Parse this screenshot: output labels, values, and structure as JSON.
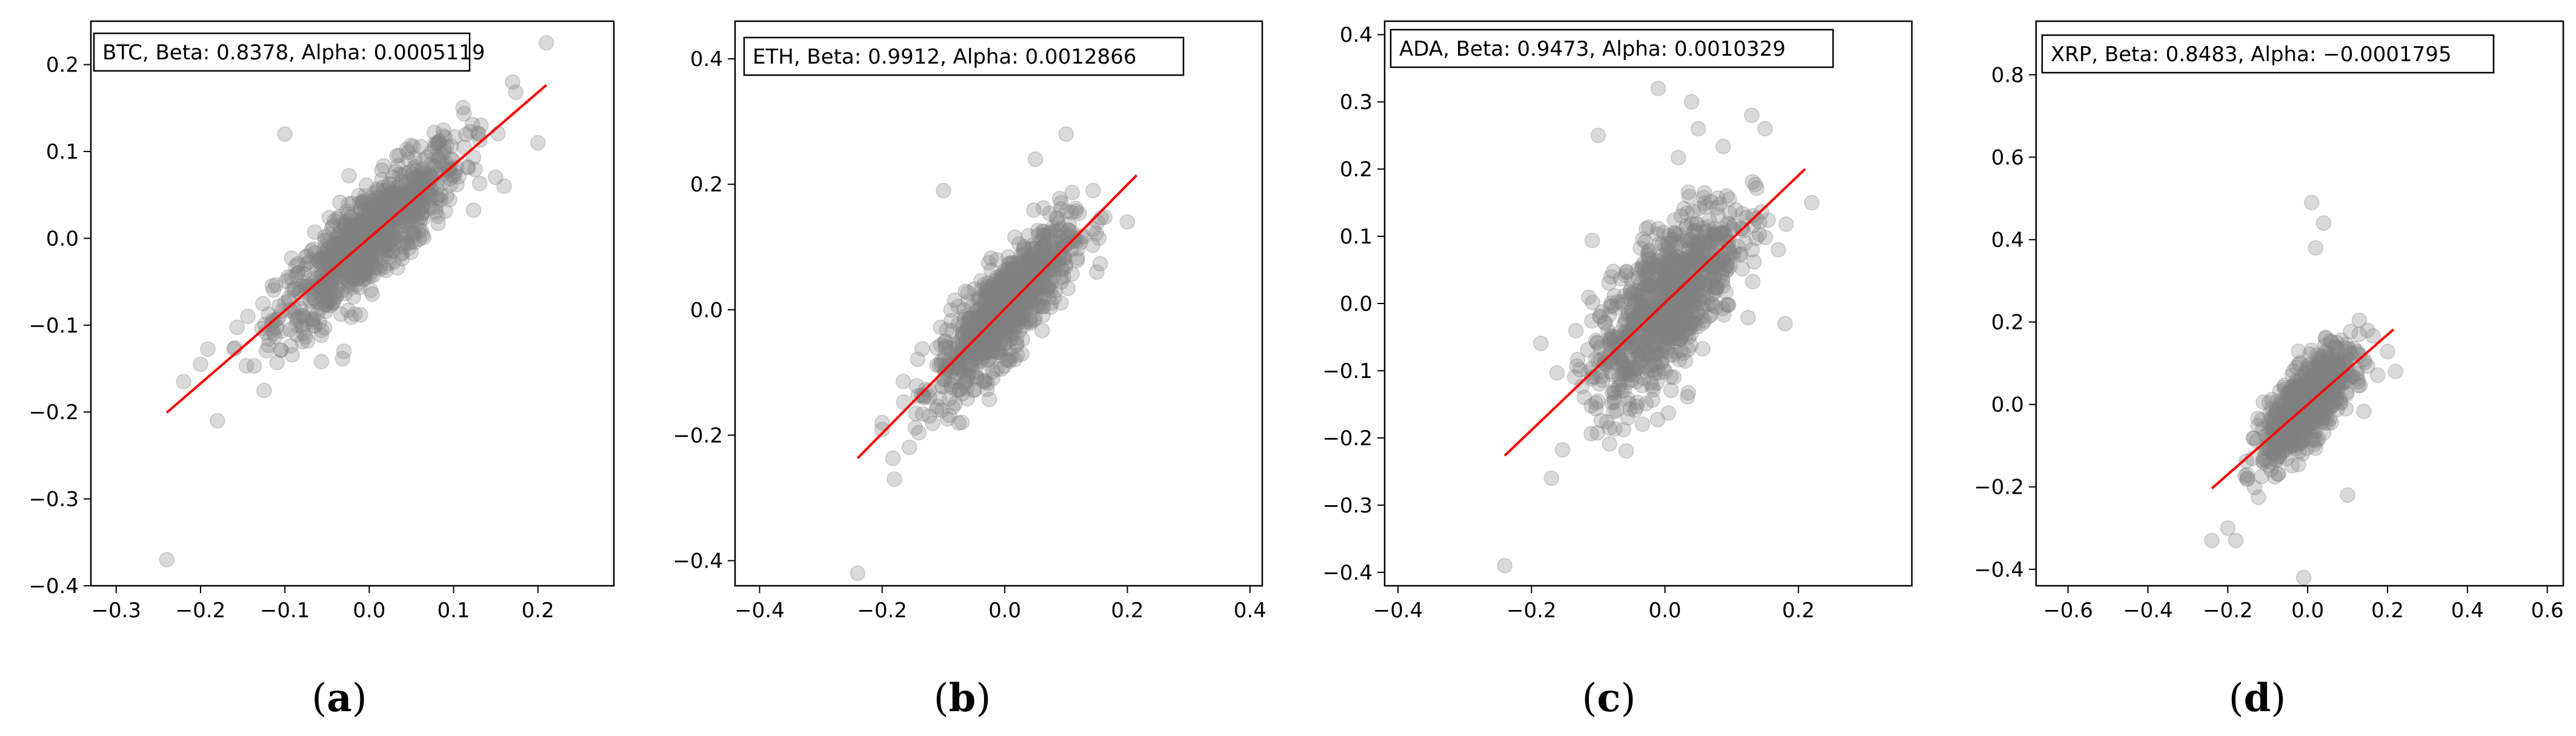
{
  "chart_data": [
    {
      "type": "scatter",
      "panel": "a",
      "asset": "BTC",
      "legend_text": "BTC, Beta: 0.8378, Alpha: 0.0005119",
      "beta": 0.8378,
      "alpha": 0.0005119,
      "xlim": [
        -0.33,
        0.29
      ],
      "ylim": [
        -0.4,
        0.25
      ],
      "xticks": [
        -0.3,
        -0.2,
        -0.1,
        0.0,
        0.1,
        0.2
      ],
      "xtick_labels": [
        "−0.3",
        "−0.2",
        "−0.1",
        "0.0",
        "0.1",
        "0.2"
      ],
      "yticks": [
        -0.4,
        -0.3,
        -0.2,
        -0.1,
        0.0,
        0.1,
        0.2
      ],
      "ytick_labels": [
        "−0.4",
        "−0.3",
        "−0.2",
        "−0.1",
        "0.0",
        "0.1",
        "0.2"
      ],
      "fit_line": {
        "x": [
          -0.24,
          0.21
        ],
        "y": [
          -0.2006,
          0.1765
        ],
        "color": "#ff0000"
      },
      "point_color": "#808080",
      "outliers": [
        [
          -0.24,
          -0.37
        ],
        [
          -0.18,
          -0.21
        ],
        [
          -0.1,
          0.12
        ],
        [
          0.21,
          0.225
        ],
        [
          0.17,
          0.18
        ],
        [
          0.2,
          0.11
        ],
        [
          -0.2,
          -0.145
        ],
        [
          -0.03,
          -0.13
        ],
        [
          0.16,
          0.06
        ],
        [
          -0.22,
          -0.165
        ]
      ]
    },
    {
      "type": "scatter",
      "panel": "b",
      "asset": "ETH",
      "legend_text": "ETH, Beta: 0.9912, Alpha: 0.0012866",
      "beta": 0.9912,
      "alpha": 0.0012866,
      "xlim": [
        -0.44,
        0.42
      ],
      "ylim": [
        -0.44,
        0.46
      ],
      "xticks": [
        -0.4,
        -0.2,
        0.0,
        0.2,
        0.4
      ],
      "xtick_labels": [
        "−0.4",
        "−0.2",
        "0.0",
        "0.2",
        "0.4"
      ],
      "yticks": [
        -0.4,
        -0.2,
        0.0,
        0.2,
        0.4
      ],
      "ytick_labels": [
        "−0.4",
        "−0.2",
        "0.0",
        "0.2",
        "0.4"
      ],
      "fit_line": {
        "x": [
          -0.24,
          0.215
        ],
        "y": [
          -0.2366,
          0.2144
        ],
        "color": "#ff0000"
      },
      "point_color": "#808080",
      "outliers": [
        [
          -0.24,
          -0.42
        ],
        [
          0.1,
          0.28
        ],
        [
          -0.1,
          0.19
        ],
        [
          0.05,
          0.24
        ],
        [
          -0.18,
          -0.27
        ],
        [
          0.2,
          0.14
        ],
        [
          -0.2,
          -0.18
        ],
        [
          0.15,
          0.06
        ]
      ]
    },
    {
      "type": "scatter",
      "panel": "c",
      "asset": "ADA",
      "legend_text": "ADA, Beta: 0.9473, Alpha: 0.0010329",
      "beta": 0.9473,
      "alpha": 0.0010329,
      "xlim": [
        -0.42,
        0.37
      ],
      "ylim": [
        -0.42,
        0.42
      ],
      "xticks": [
        -0.4,
        -0.2,
        0.0,
        0.2
      ],
      "xtick_labels": [
        "−0.4",
        "−0.2",
        "0.0",
        "0.2"
      ],
      "yticks": [
        -0.4,
        -0.3,
        -0.2,
        -0.1,
        0.0,
        0.1,
        0.2,
        0.3,
        0.4
      ],
      "ytick_labels": [
        "−0.4",
        "−0.3",
        "−0.2",
        "−0.1",
        "0.0",
        "0.1",
        "0.2",
        "0.3",
        "0.4"
      ],
      "fit_line": {
        "x": [
          -0.24,
          0.21
        ],
        "y": [
          -0.2263,
          0.2
        ],
        "color": "#ff0000"
      },
      "point_color": "#808080",
      "outliers": [
        [
          -0.24,
          -0.39
        ],
        [
          -0.01,
          0.32
        ],
        [
          0.04,
          0.3
        ],
        [
          0.05,
          0.26
        ],
        [
          0.13,
          0.28
        ],
        [
          0.15,
          0.26
        ],
        [
          -0.1,
          0.25
        ],
        [
          -0.17,
          -0.26
        ],
        [
          0.17,
          0.08
        ],
        [
          0.22,
          0.15
        ],
        [
          0.18,
          -0.03
        ]
      ]
    },
    {
      "type": "scatter",
      "panel": "d",
      "asset": "XRP",
      "legend_text": "XRP, Beta: 0.8483, Alpha: −0.0001795",
      "beta": 0.8483,
      "alpha": -0.0001795,
      "xlim": [
        -0.68,
        0.64
      ],
      "ylim": [
        -0.44,
        0.93
      ],
      "xticks": [
        -0.6,
        -0.4,
        -0.2,
        0.0,
        0.2,
        0.4,
        0.6
      ],
      "xtick_labels": [
        "−0.6",
        "−0.4",
        "−0.2",
        "0.0",
        "0.2",
        "0.4",
        "0.6"
      ],
      "yticks": [
        -0.4,
        -0.2,
        0.0,
        0.2,
        0.4,
        0.6,
        0.8
      ],
      "ytick_labels": [
        "−0.4",
        "−0.2",
        "0.0",
        "0.2",
        "0.4",
        "0.6",
        "0.8"
      ],
      "fit_line": {
        "x": [
          -0.24,
          0.215
        ],
        "y": [
          -0.2038,
          0.1822
        ],
        "color": "#ff0000"
      },
      "point_color": "#808080",
      "outliers": [
        [
          0.01,
          0.49
        ],
        [
          0.04,
          0.44
        ],
        [
          0.02,
          0.38
        ],
        [
          -0.01,
          -0.42
        ],
        [
          -0.24,
          -0.33
        ],
        [
          -0.18,
          -0.33
        ],
        [
          0.1,
          -0.22
        ],
        [
          0.22,
          0.08
        ],
        [
          0.15,
          0.18
        ],
        [
          -0.2,
          -0.3
        ]
      ]
    }
  ],
  "captions": [
    "(a)",
    "(b)",
    "(c)",
    "(d)"
  ]
}
